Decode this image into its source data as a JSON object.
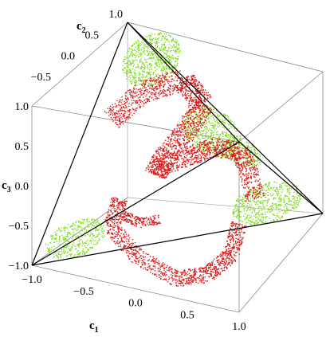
{
  "chart_data": {
    "type": "scatter",
    "dimensions": 3,
    "axes": {
      "c1": {
        "label": "c",
        "subscript": "1",
        "ticks": [
          "−1.0",
          "−0.5",
          "0.0",
          "0.5",
          "1.0"
        ],
        "range": [
          -1,
          1
        ]
      },
      "c2": {
        "label": "c",
        "subscript": "2",
        "ticks": [
          "−0.5",
          "0.0",
          "0.5",
          "1.0"
        ],
        "range": [
          -1,
          1
        ]
      },
      "c3": {
        "label": "c",
        "subscript": "3",
        "ticks": [
          "−1.0",
          "−0.5",
          "0.0",
          "0.5",
          "1.0"
        ],
        "range": [
          -1,
          1
        ]
      }
    },
    "box": true,
    "tetrahedron_vertices": [
      [
        -1,
        -1,
        -1
      ],
      [
        1,
        1,
        -1
      ],
      [
        1,
        -1,
        1
      ],
      [
        -1,
        1,
        1
      ]
    ],
    "series": [
      {
        "color": "#7fdc1e",
        "description_region": "near tetrahedron faces/corners"
      },
      {
        "color": "#d81b1b",
        "description_region": "twisted interior surface"
      }
    ],
    "colors": {
      "green": "#7fdc1e",
      "red": "#d81b1b",
      "edge": "#000000",
      "box": "#8a8a8a"
    }
  }
}
